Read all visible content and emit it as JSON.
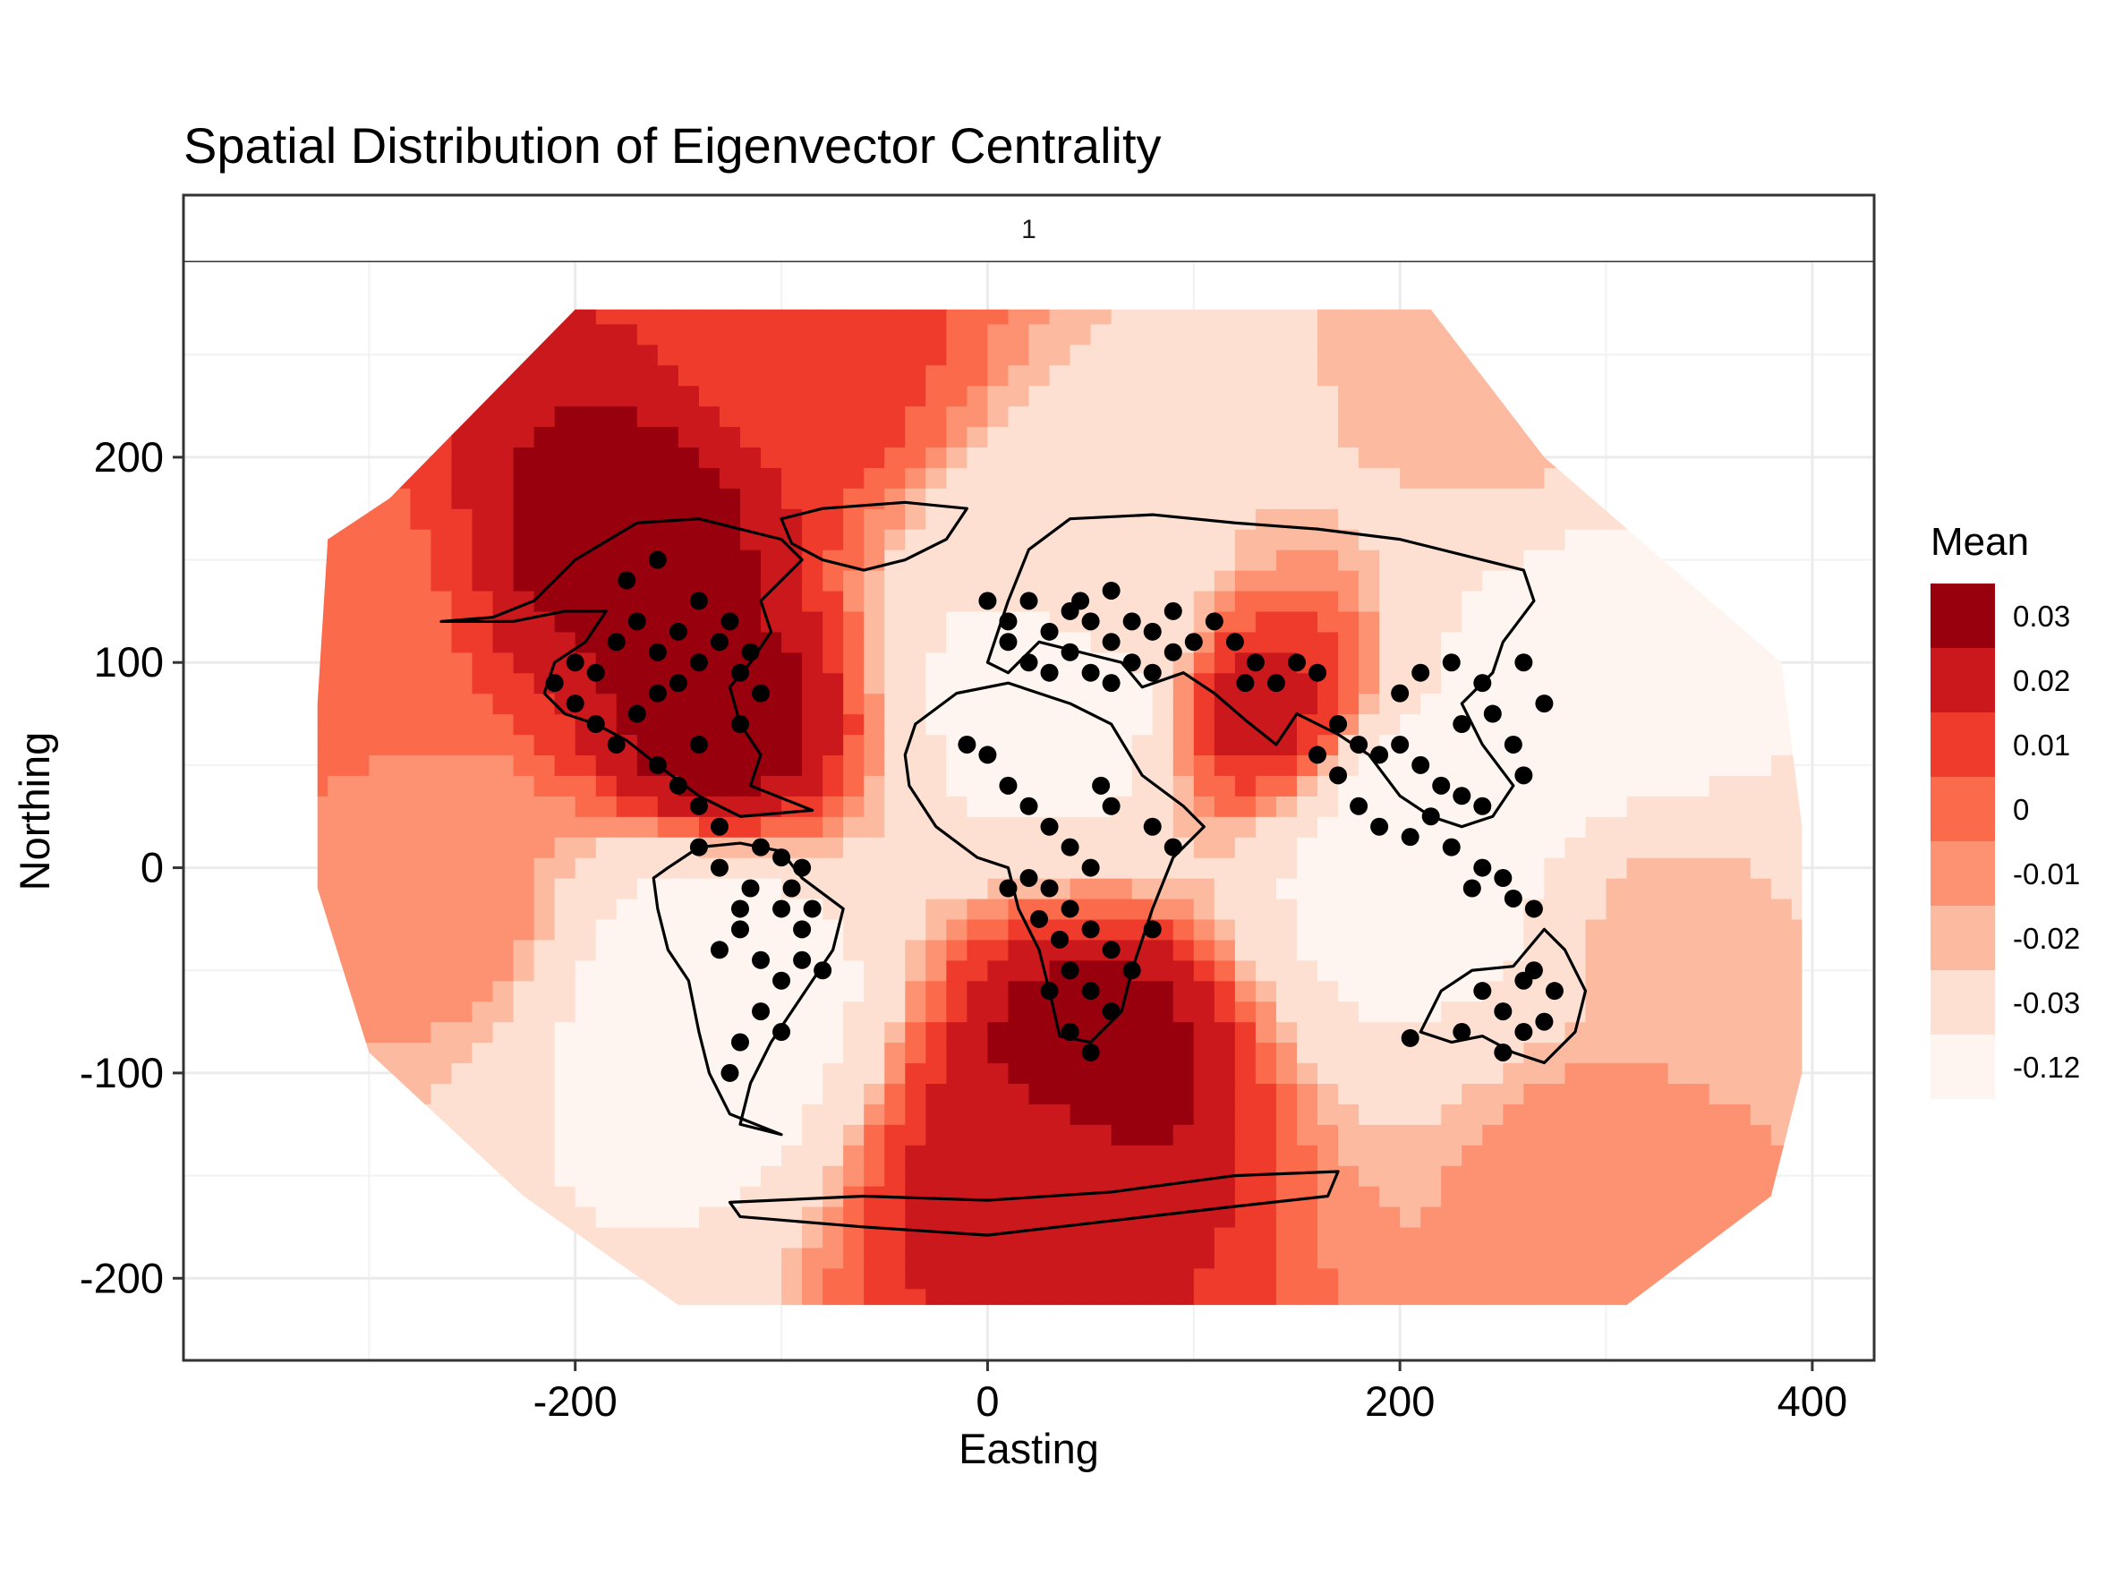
{
  "chart_data": {
    "type": "heatmap",
    "title": "Spatial Distribution of Eigenvector Centrality",
    "facet_label": "1",
    "xlabel": "Easting",
    "ylabel": "Northing",
    "xlim": [
      -390,
      430
    ],
    "ylim": [
      -240,
      295
    ],
    "x_ticks": [
      -200,
      0,
      200,
      400
    ],
    "y_ticks": [
      -200,
      -100,
      0,
      100,
      200
    ],
    "x_tick_labels": [
      "-200",
      "0",
      "200",
      "400"
    ],
    "y_tick_labels": [
      "-200",
      "-100",
      "0",
      "100",
      "200"
    ],
    "grid": true,
    "legend": {
      "title": "Mean",
      "position": "right",
      "levels": [
        "0.03",
        "0.02",
        "0.01",
        "0",
        "-0.01",
        "-0.02",
        "-0.03",
        "-0.12"
      ],
      "colors": [
        "#99000d",
        "#cb181d",
        "#ef3b2c",
        "#fb6a4a",
        "#fc9272",
        "#fcbba1",
        "#fee0d2",
        "#fff5f0"
      ]
    },
    "surface_hotspots": [
      {
        "x": -170,
        "y": 160,
        "mean": 0.03
      },
      {
        "x": -130,
        "y": 70,
        "mean": 0.03
      },
      {
        "x": 50,
        "y": -90,
        "mean": 0.03
      },
      {
        "x": 20,
        "y": -150,
        "mean": 0.02
      },
      {
        "x": 130,
        "y": 80,
        "mean": 0.02
      },
      {
        "x": -90,
        "y": 250,
        "mean": 0.01
      },
      {
        "x": -330,
        "y": 120,
        "mean": 0.0
      },
      {
        "x": 300,
        "y": -150,
        "mean": -0.01
      },
      {
        "x": 330,
        "y": -30,
        "mean": -0.02
      },
      {
        "x": 250,
        "y": 230,
        "mean": -0.02
      },
      {
        "x": -140,
        "y": -60,
        "mean": -0.12
      },
      {
        "x": 300,
        "y": 90,
        "mean": -0.12
      },
      {
        "x": 210,
        "y": 10,
        "mean": -0.12
      },
      {
        "x": 40,
        "y": 90,
        "mean": -0.12
      },
      {
        "x": 60,
        "y": 130,
        "mean": -0.03
      },
      {
        "x": -260,
        "y": -20,
        "mean": -0.01
      }
    ],
    "points": [
      [
        -210,
        90
      ],
      [
        -200,
        100
      ],
      [
        -190,
        95
      ],
      [
        -180,
        110
      ],
      [
        -170,
        120
      ],
      [
        -160,
        105
      ],
      [
        -150,
        115
      ],
      [
        -140,
        100
      ],
      [
        -130,
        110
      ],
      [
        -120,
        95
      ],
      [
        -200,
        80
      ],
      [
        -190,
        70
      ],
      [
        -180,
        60
      ],
      [
        -170,
        75
      ],
      [
        -160,
        85
      ],
      [
        -150,
        90
      ],
      [
        -175,
        140
      ],
      [
        -160,
        150
      ],
      [
        -140,
        130
      ],
      [
        -125,
        120
      ],
      [
        -115,
        105
      ],
      [
        -110,
        85
      ],
      [
        -120,
        70
      ],
      [
        -140,
        60
      ],
      [
        -160,
        50
      ],
      [
        -150,
        40
      ],
      [
        -140,
        30
      ],
      [
        -130,
        20
      ],
      [
        -110,
        10
      ],
      [
        -100,
        5
      ],
      [
        -90,
        0
      ],
      [
        -140,
        10
      ],
      [
        -130,
        0
      ],
      [
        -115,
        -10
      ],
      [
        -100,
        -20
      ],
      [
        -90,
        -30
      ],
      [
        -120,
        -30
      ],
      [
        -130,
        -40
      ],
      [
        -110,
        -45
      ],
      [
        -100,
        -55
      ],
      [
        -90,
        -45
      ],
      [
        -80,
        -50
      ],
      [
        -110,
        -70
      ],
      [
        -100,
        -80
      ],
      [
        -120,
        -85
      ],
      [
        -125,
        -100
      ],
      [
        -85,
        -20
      ],
      [
        -120,
        -20
      ],
      [
        -95,
        -10
      ],
      [
        0,
        130
      ],
      [
        10,
        120
      ],
      [
        20,
        130
      ],
      [
        30,
        115
      ],
      [
        40,
        125
      ],
      [
        50,
        120
      ],
      [
        60,
        110
      ],
      [
        70,
        120
      ],
      [
        80,
        115
      ],
      [
        90,
        105
      ],
      [
        100,
        110
      ],
      [
        110,
        120
      ],
      [
        20,
        100
      ],
      [
        30,
        95
      ],
      [
        40,
        105
      ],
      [
        50,
        95
      ],
      [
        60,
        90
      ],
      [
        70,
        100
      ],
      [
        80,
        95
      ],
      [
        10,
        110
      ],
      [
        45,
        130
      ],
      [
        60,
        135
      ],
      [
        90,
        125
      ],
      [
        120,
        110
      ],
      [
        130,
        100
      ],
      [
        140,
        90
      ],
      [
        150,
        100
      ],
      [
        160,
        95
      ],
      [
        125,
        90
      ],
      [
        -10,
        60
      ],
      [
        0,
        55
      ],
      [
        10,
        40
      ],
      [
        20,
        30
      ],
      [
        30,
        20
      ],
      [
        40,
        10
      ],
      [
        50,
        0
      ],
      [
        30,
        -10
      ],
      [
        40,
        -20
      ],
      [
        50,
        -30
      ],
      [
        60,
        -40
      ],
      [
        40,
        -50
      ],
      [
        30,
        -60
      ],
      [
        50,
        -60
      ],
      [
        60,
        -70
      ],
      [
        40,
        -80
      ],
      [
        50,
        -90
      ],
      [
        70,
        -50
      ],
      [
        80,
        -30
      ],
      [
        90,
        10
      ],
      [
        80,
        20
      ],
      [
        60,
        30
      ],
      [
        55,
        40
      ],
      [
        20,
        -5
      ],
      [
        25,
        -25
      ],
      [
        10,
        -10
      ],
      [
        35,
        -35
      ],
      [
        170,
        70
      ],
      [
        180,
        60
      ],
      [
        190,
        55
      ],
      [
        200,
        60
      ],
      [
        210,
        50
      ],
      [
        220,
        40
      ],
      [
        230,
        35
      ],
      [
        240,
        30
      ],
      [
        215,
        25
      ],
      [
        205,
        15
      ],
      [
        225,
        10
      ],
      [
        240,
        0
      ],
      [
        250,
        -5
      ],
      [
        235,
        -10
      ],
      [
        255,
        -15
      ],
      [
        265,
        -20
      ],
      [
        230,
        70
      ],
      [
        245,
        75
      ],
      [
        255,
        60
      ],
      [
        260,
        45
      ],
      [
        200,
        85
      ],
      [
        210,
        95
      ],
      [
        225,
        100
      ],
      [
        240,
        90
      ],
      [
        260,
        100
      ],
      [
        270,
        80
      ],
      [
        190,
        20
      ],
      [
        180,
        30
      ],
      [
        170,
        45
      ],
      [
        160,
        55
      ],
      [
        240,
        -60
      ],
      [
        250,
        -70
      ],
      [
        260,
        -80
      ],
      [
        270,
        -75
      ],
      [
        275,
        -60
      ],
      [
        260,
        -55
      ],
      [
        230,
        -80
      ],
      [
        205,
        -83
      ],
      [
        250,
        -90
      ],
      [
        265,
        -50
      ]
    ]
  },
  "outlines": [
    {
      "id": "north-america",
      "points": [
        [
          -265,
          120
        ],
        [
          -240,
          122
        ],
        [
          -220,
          130
        ],
        [
          -200,
          150
        ],
        [
          -170,
          168
        ],
        [
          -140,
          170
        ],
        [
          -120,
          165
        ],
        [
          -100,
          160
        ],
        [
          -90,
          150
        ],
        [
          -100,
          140
        ],
        [
          -110,
          130
        ],
        [
          -105,
          115
        ],
        [
          -115,
          100
        ],
        [
          -125,
          88
        ],
        [
          -120,
          70
        ],
        [
          -110,
          55
        ],
        [
          -115,
          40
        ],
        [
          -95,
          32
        ],
        [
          -85,
          28
        ],
        [
          -120,
          25
        ],
        [
          -140,
          35
        ],
        [
          -160,
          50
        ],
        [
          -175,
          62
        ],
        [
          -190,
          70
        ],
        [
          -205,
          75
        ],
        [
          -215,
          85
        ],
        [
          -210,
          100
        ],
        [
          -195,
          110
        ],
        [
          -185,
          125
        ],
        [
          -205,
          125
        ],
        [
          -230,
          120
        ]
      ]
    },
    {
      "id": "greenland",
      "points": [
        [
          -100,
          170
        ],
        [
          -80,
          175
        ],
        [
          -40,
          178
        ],
        [
          -10,
          175
        ],
        [
          -20,
          160
        ],
        [
          -40,
          150
        ],
        [
          -60,
          145
        ],
        [
          -80,
          150
        ],
        [
          -95,
          158
        ]
      ]
    },
    {
      "id": "south-america",
      "points": [
        [
          -155,
          0
        ],
        [
          -140,
          10
        ],
        [
          -120,
          12
        ],
        [
          -100,
          8
        ],
        [
          -90,
          -5
        ],
        [
          -70,
          -20
        ],
        [
          -75,
          -40
        ],
        [
          -85,
          -55
        ],
        [
          -95,
          -70
        ],
        [
          -105,
          -85
        ],
        [
          -115,
          -105
        ],
        [
          -120,
          -125
        ],
        [
          -100,
          -130
        ],
        [
          -125,
          -120
        ],
        [
          -135,
          -100
        ],
        [
          -140,
          -80
        ],
        [
          -145,
          -55
        ],
        [
          -155,
          -40
        ],
        [
          -160,
          -20
        ],
        [
          -162,
          -5
        ]
      ]
    },
    {
      "id": "africa",
      "points": [
        [
          -35,
          70
        ],
        [
          -15,
          85
        ],
        [
          10,
          90
        ],
        [
          40,
          80
        ],
        [
          60,
          70
        ],
        [
          75,
          45
        ],
        [
          95,
          30
        ],
        [
          105,
          20
        ],
        [
          90,
          5
        ],
        [
          80,
          -20
        ],
        [
          70,
          -50
        ],
        [
          65,
          -70
        ],
        [
          50,
          -85
        ],
        [
          35,
          -82
        ],
        [
          30,
          -60
        ],
        [
          25,
          -40
        ],
        [
          15,
          -20
        ],
        [
          10,
          0
        ],
        [
          -5,
          5
        ],
        [
          -25,
          20
        ],
        [
          -38,
          40
        ],
        [
          -40,
          55
        ]
      ]
    },
    {
      "id": "eurasia",
      "points": [
        [
          0,
          100
        ],
        [
          10,
          130
        ],
        [
          20,
          155
        ],
        [
          40,
          170
        ],
        [
          80,
          172
        ],
        [
          120,
          168
        ],
        [
          160,
          165
        ],
        [
          200,
          160
        ],
        [
          240,
          150
        ],
        [
          260,
          145
        ],
        [
          265,
          130
        ],
        [
          250,
          110
        ],
        [
          245,
          95
        ],
        [
          230,
          80
        ],
        [
          240,
          60
        ],
        [
          255,
          40
        ],
        [
          245,
          25
        ],
        [
          230,
          20
        ],
        [
          215,
          25
        ],
        [
          200,
          35
        ],
        [
          185,
          55
        ],
        [
          170,
          65
        ],
        [
          150,
          75
        ],
        [
          140,
          60
        ],
        [
          125,
          72
        ],
        [
          110,
          85
        ],
        [
          95,
          95
        ],
        [
          75,
          88
        ],
        [
          65,
          100
        ],
        [
          45,
          105
        ],
        [
          25,
          110
        ],
        [
          10,
          95
        ]
      ]
    },
    {
      "id": "australia",
      "points": [
        [
          210,
          -80
        ],
        [
          220,
          -60
        ],
        [
          235,
          -50
        ],
        [
          255,
          -48
        ],
        [
          270,
          -30
        ],
        [
          280,
          -40
        ],
        [
          290,
          -60
        ],
        [
          285,
          -80
        ],
        [
          270,
          -95
        ],
        [
          255,
          -90
        ],
        [
          240,
          -82
        ],
        [
          225,
          -85
        ]
      ]
    },
    {
      "id": "antarctica",
      "points": [
        [
          -125,
          -163
        ],
        [
          -60,
          -160
        ],
        [
          0,
          -162
        ],
        [
          60,
          -158
        ],
        [
          120,
          -150
        ],
        [
          170,
          -148
        ],
        [
          165,
          -160
        ],
        [
          120,
          -165
        ],
        [
          60,
          -172
        ],
        [
          0,
          -179
        ],
        [
          -60,
          -175
        ],
        [
          -120,
          -170
        ]
      ]
    }
  ]
}
